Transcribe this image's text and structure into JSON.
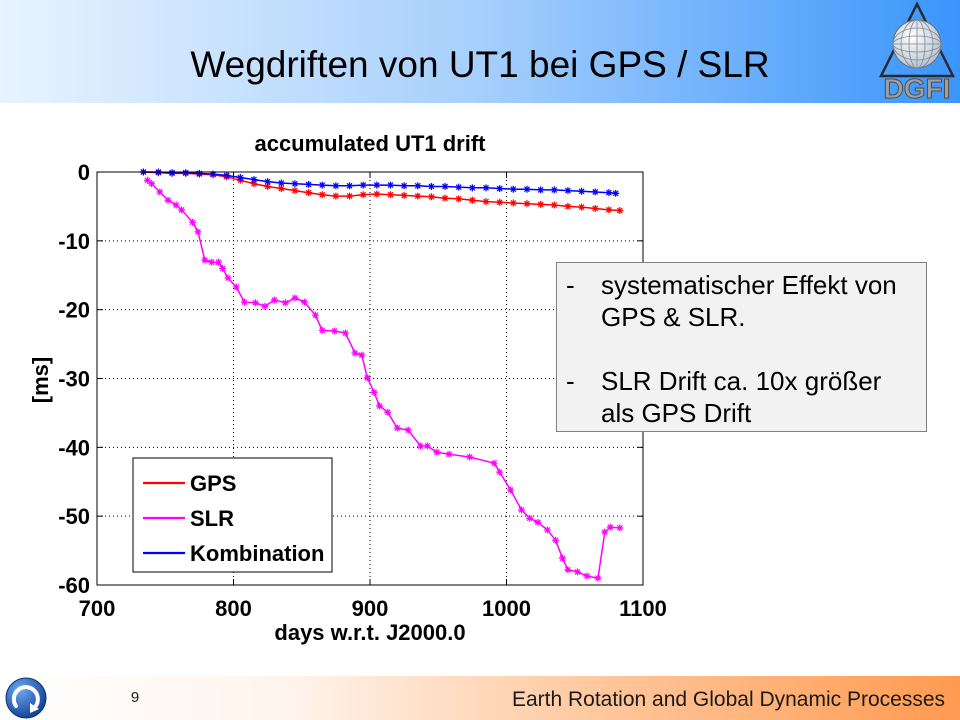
{
  "header": {
    "title": "Wegdriften von UT1 bei GPS / SLR",
    "logo_text": "DGFI"
  },
  "chart_data": {
    "type": "line",
    "title": "accumulated UT1 drift",
    "xlabel": "days w.r.t. J2000.0",
    "ylabel": "[ms]",
    "xlim": [
      700,
      1100
    ],
    "ylim": [
      -60,
      0
    ],
    "xticks": [
      700,
      800,
      900,
      1000,
      1100
    ],
    "yticks": [
      0,
      -10,
      -20,
      -30,
      -40,
      -50,
      -60
    ],
    "grid": true,
    "legend": "bottom-left",
    "series": [
      {
        "name": "GPS",
        "color": "#ff0000",
        "x": [
          734,
          745,
          755,
          765,
          775,
          785,
          795,
          805,
          815,
          825,
          835,
          845,
          855,
          865,
          875,
          885,
          895,
          905,
          915,
          925,
          935,
          945,
          955,
          965,
          975,
          985,
          995,
          1005,
          1015,
          1025,
          1035,
          1045,
          1055,
          1065,
          1075,
          1083
        ],
        "y": [
          0,
          -0.1,
          -0.2,
          -0.2,
          -0.3,
          -0.4,
          -0.7,
          -1.2,
          -1.7,
          -2.1,
          -2.4,
          -2.7,
          -3.0,
          -3.3,
          -3.5,
          -3.5,
          -3.3,
          -3.2,
          -3.3,
          -3.4,
          -3.5,
          -3.6,
          -3.8,
          -3.9,
          -4.1,
          -4.3,
          -4.4,
          -4.5,
          -4.6,
          -4.7,
          -4.8,
          -5.0,
          -5.1,
          -5.3,
          -5.5,
          -5.6
        ]
      },
      {
        "name": "SLR",
        "color": "#ff00ff",
        "x": [
          737,
          740,
          746,
          752,
          758,
          762,
          770,
          774,
          779,
          784,
          789,
          792,
          796,
          802,
          808,
          816,
          823,
          830,
          838,
          845,
          852,
          860,
          865,
          874,
          882,
          889,
          894,
          898,
          903,
          907,
          913,
          920,
          928,
          937,
          942,
          949,
          958,
          973,
          991,
          995,
          1003,
          1011,
          1017,
          1023,
          1030,
          1036,
          1041,
          1045,
          1052,
          1059,
          1067,
          1072,
          1076,
          1083
        ],
        "y": [
          -1.2,
          -1.7,
          -2.9,
          -4.1,
          -4.8,
          -5.5,
          -7.3,
          -8.7,
          -12.8,
          -13.1,
          -13.1,
          -14.0,
          -15.4,
          -16.7,
          -18.9,
          -19.0,
          -19.5,
          -18.6,
          -19.0,
          -18.3,
          -18.9,
          -20.8,
          -23.0,
          -23.1,
          -23.4,
          -26.3,
          -26.6,
          -29.9,
          -32.0,
          -34.0,
          -34.9,
          -37.2,
          -37.5,
          -39.8,
          -39.8,
          -40.7,
          -41.0,
          -41.4,
          -42.3,
          -43.6,
          -46.2,
          -49.1,
          -50.3,
          -50.9,
          -52.0,
          -53.5,
          -56.1,
          -57.8,
          -58.1,
          -58.7,
          -59.0,
          -52.3,
          -51.6,
          -51.7
        ]
      },
      {
        "name": "Kombination",
        "color": "#0000ff",
        "x": [
          734,
          745,
          755,
          765,
          775,
          785,
          795,
          805,
          815,
          825,
          835,
          845,
          855,
          865,
          875,
          885,
          895,
          905,
          915,
          925,
          935,
          945,
          955,
          965,
          975,
          985,
          995,
          1005,
          1015,
          1025,
          1035,
          1045,
          1055,
          1065,
          1075,
          1080
        ],
        "y": [
          0,
          0,
          -0.1,
          -0.1,
          -0.2,
          -0.3,
          -0.5,
          -0.8,
          -1.1,
          -1.4,
          -1.6,
          -1.7,
          -1.8,
          -1.9,
          -2.0,
          -2.0,
          -1.9,
          -1.9,
          -1.9,
          -2.0,
          -2.0,
          -2.1,
          -2.1,
          -2.2,
          -2.3,
          -2.3,
          -2.4,
          -2.5,
          -2.5,
          -2.6,
          -2.6,
          -2.7,
          -2.8,
          -2.9,
          -3.0,
          -3.1
        ]
      }
    ]
  },
  "notes": {
    "bullets": [
      {
        "marker": "-",
        "text": "systematischer Effekt von GPS & SLR."
      },
      {
        "marker": "-",
        "text": "SLR Drift ca. 10x größer als GPS Drift"
      }
    ]
  },
  "footer": {
    "page_number": "9",
    "text": "Earth Rotation and Global Dynamic Processes"
  }
}
